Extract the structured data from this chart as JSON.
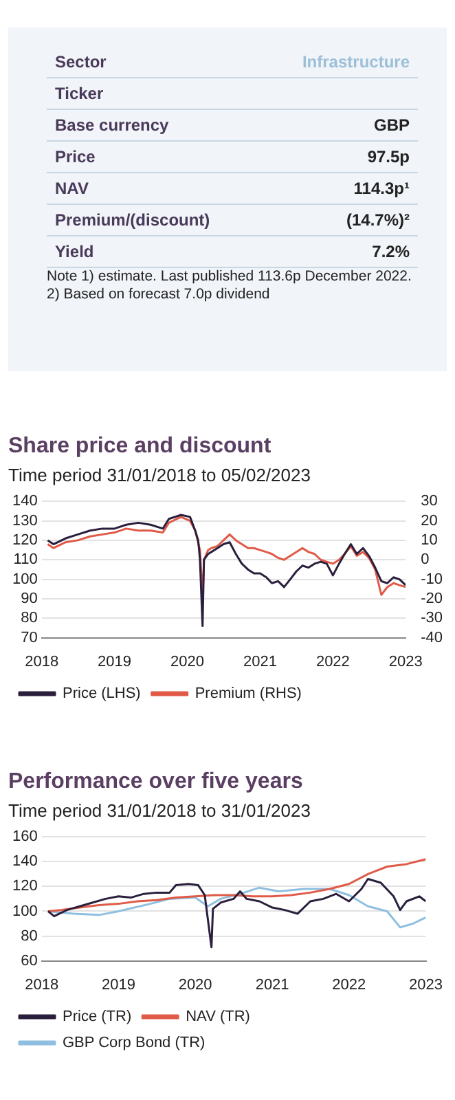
{
  "chart_data": [
    {
      "type": "other",
      "categories": [
        "Sector",
        "Ticker",
        "Base currency",
        "Price",
        "NAV",
        "Premium/(discount)",
        "Yield"
      ],
      "value_labels": [
        "Infrastructure",
        null,
        "GBP",
        "97.5p",
        "114.3p¹",
        "(14.7%)²",
        "7.2%"
      ],
      "annotations": [
        "Note 1) estimate. Last published 113.6p December 2022. 2) Based on forecast 7.0p dividend"
      ]
    },
    {
      "type": "line",
      "title": "Share price and discount",
      "subtitle": "Time period 31/01/2018 to 05/02/2023",
      "legend": "bottom",
      "grid": "y",
      "xlim": [
        "2018-01-01",
        "2023-01-01"
      ],
      "xticks": [
        "2018",
        "2019",
        "2020",
        "2021",
        "2022",
        "2023"
      ],
      "ylim": [
        70,
        140
      ],
      "yticks": [
        70,
        80,
        90,
        100,
        110,
        120,
        130,
        140
      ],
      "y2lim": [
        -40,
        30
      ],
      "y2ticks": [
        -40,
        -30,
        -20,
        -10,
        0,
        10,
        20,
        30
      ],
      "series": [
        {
          "name": "Price (LHS)",
          "color": "#2a1f3d",
          "x": [
            "2018-01-31",
            "2018-03-01",
            "2018-05-01",
            "2018-07-01",
            "2018-09-01",
            "2018-11-01",
            "2019-01-01",
            "2019-03-01",
            "2019-05-01",
            "2019-07-01",
            "2019-09-01",
            "2019-10-01",
            "2019-12-01",
            "2020-01-15",
            "2020-02-10",
            "2020-02-25",
            "2020-03-05",
            "2020-03-18",
            "2020-03-25",
            "2020-04-15",
            "2020-05-01",
            "2020-06-01",
            "2020-07-01",
            "2020-08-01",
            "2020-09-01",
            "2020-10-01",
            "2020-11-01",
            "2020-12-01",
            "2021-01-01",
            "2021-02-01",
            "2021-03-01",
            "2021-04-01",
            "2021-05-01",
            "2021-06-01",
            "2021-07-01",
            "2021-08-01",
            "2021-09-01",
            "2021-10-01",
            "2021-11-01",
            "2021-12-01",
            "2022-01-01",
            "2022-02-01",
            "2022-03-01",
            "2022-04-01",
            "2022-05-01",
            "2022-06-01",
            "2022-07-01",
            "2022-08-01",
            "2022-09-01",
            "2022-10-01",
            "2022-11-01",
            "2022-12-01",
            "2023-01-01"
          ],
          "values": [
            120,
            118,
            121,
            123,
            125,
            126,
            126,
            128,
            129,
            128,
            126,
            131,
            133,
            132,
            125,
            120,
            110,
            76,
            110,
            113,
            114,
            116,
            118,
            119,
            113,
            108,
            105,
            103,
            103,
            101,
            98,
            99,
            96,
            100,
            104,
            107,
            106,
            108,
            109,
            108,
            102,
            108,
            113,
            118,
            113,
            116,
            112,
            106,
            99,
            98,
            101,
            100,
            97
          ]
        },
        {
          "name": "Premium (RHS)",
          "color": "#e05a47",
          "axis": "y2",
          "x": [
            "2018-01-31",
            "2018-03-01",
            "2018-05-01",
            "2018-07-01",
            "2018-09-01",
            "2018-11-01",
            "2019-01-01",
            "2019-03-01",
            "2019-05-01",
            "2019-07-01",
            "2019-09-01",
            "2019-10-01",
            "2019-12-01",
            "2020-01-15",
            "2020-02-10",
            "2020-03-05",
            "2020-03-18",
            "2020-03-25",
            "2020-04-15",
            "2020-05-01",
            "2020-06-01",
            "2020-07-01",
            "2020-08-01",
            "2020-09-01",
            "2020-10-01",
            "2020-11-01",
            "2020-12-01",
            "2021-01-01",
            "2021-02-01",
            "2021-03-01",
            "2021-04-01",
            "2021-05-01",
            "2021-06-01",
            "2021-07-01",
            "2021-08-01",
            "2021-09-01",
            "2021-10-01",
            "2021-11-01",
            "2021-12-01",
            "2022-01-01",
            "2022-02-01",
            "2022-03-01",
            "2022-04-01",
            "2022-05-01",
            "2022-06-01",
            "2022-07-01",
            "2022-08-01",
            "2022-09-01",
            "2022-10-01",
            "2022-11-01",
            "2022-12-01",
            "2023-01-01"
          ],
          "values": [
            8,
            6,
            9,
            10,
            12,
            13,
            14,
            16,
            15,
            15,
            14,
            19,
            22,
            20,
            15,
            5,
            -20,
            0,
            5,
            6,
            7,
            10,
            13,
            10,
            8,
            6,
            6,
            5,
            4,
            3,
            1,
            0,
            2,
            4,
            6,
            4,
            3,
            0,
            -1,
            -2,
            0,
            3,
            7,
            2,
            4,
            1,
            -5,
            -18,
            -14,
            -12,
            -13,
            -14
          ]
        }
      ]
    },
    {
      "type": "line",
      "title": "Performance over five years",
      "subtitle": "Time period 31/01/2018 to 31/01/2023",
      "legend": "bottom",
      "grid": "y",
      "xlim": [
        "2018-01-01",
        "2023-01-01"
      ],
      "xticks": [
        "2018",
        "2019",
        "2020",
        "2021",
        "2022",
        "2023"
      ],
      "ylim": [
        60,
        160
      ],
      "yticks": [
        60,
        80,
        100,
        120,
        140,
        160
      ],
      "series": [
        {
          "name": "Price (TR)",
          "color": "#2a1f3d",
          "x": [
            "2018-01-31",
            "2018-03-01",
            "2018-05-01",
            "2018-07-01",
            "2018-09-01",
            "2018-11-01",
            "2019-01-01",
            "2019-03-01",
            "2019-05-01",
            "2019-07-01",
            "2019-09-01",
            "2019-10-01",
            "2019-12-01",
            "2020-01-15",
            "2020-02-15",
            "2020-03-18",
            "2020-03-25",
            "2020-05-01",
            "2020-07-01",
            "2020-08-01",
            "2020-09-01",
            "2020-11-01",
            "2021-01-01",
            "2021-03-01",
            "2021-05-01",
            "2021-07-01",
            "2021-09-01",
            "2021-11-01",
            "2022-01-01",
            "2022-03-01",
            "2022-04-01",
            "2022-06-01",
            "2022-08-01",
            "2022-09-01",
            "2022-10-01",
            "2022-12-01",
            "2023-01-01"
          ],
          "values": [
            100,
            96,
            101,
            104,
            107,
            110,
            112,
            111,
            114,
            115,
            115,
            121,
            122,
            121,
            113,
            71,
            102,
            107,
            110,
            116,
            110,
            108,
            103,
            101,
            98,
            108,
            110,
            114,
            108,
            118,
            126,
            123,
            112,
            101,
            108,
            112,
            108
          ]
        },
        {
          "name": "NAV (TR)",
          "color": "#e05a47",
          "x": [
            "2018-01-31",
            "2018-04-01",
            "2018-07-01",
            "2018-10-01",
            "2019-01-01",
            "2019-04-01",
            "2019-07-01",
            "2019-10-01",
            "2020-01-01",
            "2020-04-01",
            "2020-07-01",
            "2020-10-01",
            "2021-01-01",
            "2021-04-01",
            "2021-07-01",
            "2021-10-01",
            "2022-01-01",
            "2022-04-01",
            "2022-07-01",
            "2022-10-01",
            "2023-01-01"
          ],
          "values": [
            100,
            101,
            103,
            105,
            106,
            108,
            109,
            111,
            112,
            113,
            113,
            112,
            112,
            113,
            115,
            118,
            122,
            130,
            136,
            138,
            142
          ]
        },
        {
          "name": "GBP Corp Bond (TR)",
          "color": "#8fbfe0",
          "x": [
            "2018-01-31",
            "2018-06-01",
            "2018-10-01",
            "2019-01-01",
            "2019-06-01",
            "2019-09-01",
            "2020-01-01",
            "2020-03-01",
            "2020-05-01",
            "2020-08-01",
            "2020-11-01",
            "2021-02-01",
            "2021-06-01",
            "2021-10-01",
            "2022-01-01",
            "2022-04-01",
            "2022-07-01",
            "2022-09-01",
            "2022-11-01",
            "2023-01-01"
          ],
          "values": [
            100,
            98,
            97,
            100,
            106,
            110,
            111,
            104,
            110,
            114,
            119,
            116,
            118,
            118,
            113,
            104,
            100,
            87,
            90,
            95
          ]
        }
      ]
    }
  ]
}
